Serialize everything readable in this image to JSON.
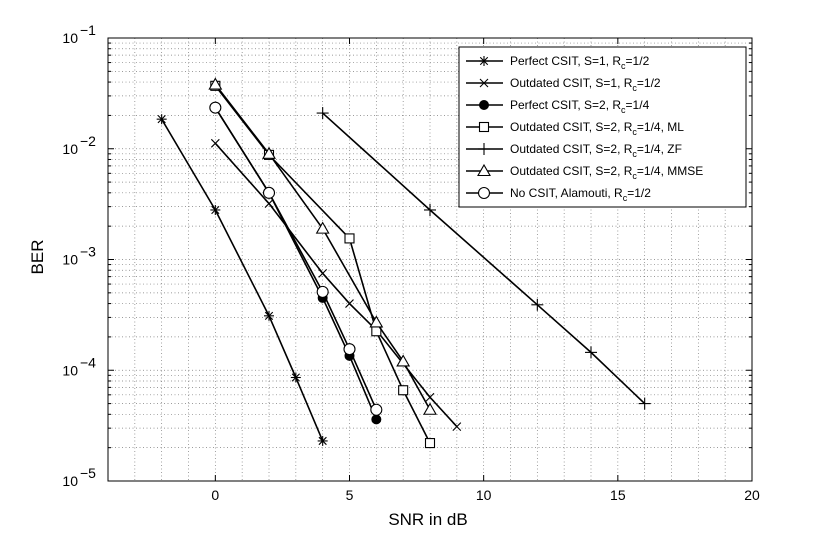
{
  "chart_data": {
    "type": "line",
    "xlabel": "SNR in dB",
    "ylabel": "BER",
    "xlim": [
      -4,
      20
    ],
    "ylim": [
      1e-05,
      0.1
    ],
    "yscale": "log",
    "grid": "major and minor (dotted)",
    "legend_position": "top-right",
    "x_ticks": [
      {
        "value": 0,
        "label": "0"
      },
      {
        "value": 5,
        "label": "5"
      },
      {
        "value": 10,
        "label": "10"
      },
      {
        "value": 15,
        "label": "15"
      },
      {
        "value": 20,
        "label": "20"
      }
    ],
    "y_ticks": [
      {
        "value": 1e-05,
        "base": "10",
        "exp": "−5"
      },
      {
        "value": 0.0001,
        "base": "10",
        "exp": "−4"
      },
      {
        "value": 0.001,
        "base": "10",
        "exp": "−3"
      },
      {
        "value": 0.01,
        "base": "10",
        "exp": "−2"
      },
      {
        "value": 0.1,
        "base": "10",
        "exp": "−1"
      }
    ],
    "series": [
      {
        "name": "Perfect CSIT, S=1, R_c=1/2",
        "legend": {
          "pre": "Perfect CSIT, S=1, R",
          "sub": "c",
          "post": "=1/2"
        },
        "marker": "asterisk",
        "x": [
          -2,
          0,
          2,
          3,
          4
        ],
        "y": [
          0.0185,
          0.0028,
          0.00031,
          8.6e-05,
          2.3e-05
        ]
      },
      {
        "name": "Outdated CSIT, S=1, R_c=1/2",
        "legend": {
          "pre": "Outdated CSIT, S=1, R",
          "sub": "c",
          "post": "=1/2"
        },
        "marker": "x",
        "x": [
          0,
          2,
          4,
          5,
          6,
          8,
          9
        ],
        "y": [
          0.0112,
          0.0032,
          0.00075,
          0.0004,
          0.00023,
          5.7e-05,
          3.1e-05
        ]
      },
      {
        "name": "Perfect CSIT, S=2, R_c=1/4",
        "legend": {
          "pre": "Perfect CSIT, S=2, R",
          "sub": "c",
          "post": "=1/4"
        },
        "marker": "filled-circle",
        "x": [
          0,
          2,
          4,
          5,
          6
        ],
        "y": [
          0.0235,
          0.004,
          0.00045,
          0.000135,
          3.6e-05
        ]
      },
      {
        "name": "Outdated CSIT, S=2, R_c=1/4, ML",
        "legend": {
          "pre": "Outdated CSIT, S=2, R",
          "sub": "c",
          "post": "=1/4, ML"
        },
        "marker": "square",
        "x": [
          0,
          2,
          5,
          6,
          7,
          8
        ],
        "y": [
          0.037,
          0.0088,
          0.00155,
          0.000225,
          6.6e-05,
          2.2e-05
        ]
      },
      {
        "name": "Outdated CSIT, S=2, R_c=1/4, ZF",
        "legend": {
          "pre": "Outdated CSIT, S=2, R",
          "sub": "c",
          "post": "=1/4, ZF"
        },
        "marker": "plus",
        "x": [
          4,
          8,
          12,
          14,
          16
        ],
        "y": [
          0.021,
          0.0028,
          0.00039,
          0.000145,
          5e-05
        ]
      },
      {
        "name": "Outdated CSIT, S=2, R_c=1/4, MMSE",
        "legend": {
          "pre": "Outdated CSIT, S=2, R",
          "sub": "c",
          "post": "=1/4, MMSE"
        },
        "marker": "triangle",
        "x": [
          0,
          2,
          4,
          6,
          7,
          8
        ],
        "y": [
          0.038,
          0.009,
          0.0019,
          0.00027,
          0.00012,
          4.4e-05
        ]
      },
      {
        "name": "No CSIT, Alamouti, R_c=1/2",
        "legend": {
          "pre": "No CSIT, Alamouti, R",
          "sub": "c",
          "post": "=1/2"
        },
        "marker": "circle",
        "x": [
          0,
          2,
          4,
          5,
          6
        ],
        "y": [
          0.0235,
          0.004,
          0.00051,
          0.000155,
          4.4e-05
        ]
      }
    ]
  }
}
